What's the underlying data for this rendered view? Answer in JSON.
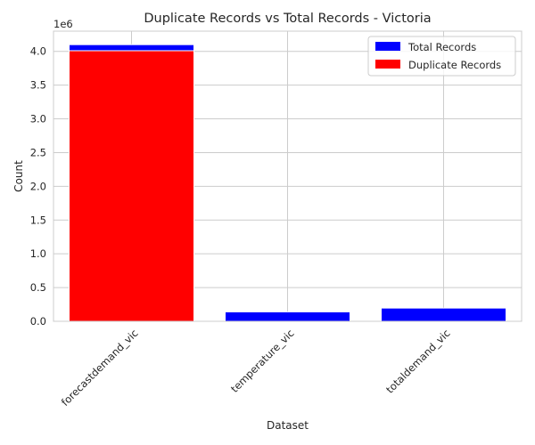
{
  "chart_data": {
    "type": "bar",
    "title": "Duplicate Records vs Total Records - Victoria",
    "xlabel": "Dataset",
    "ylabel": "Count",
    "y_offset_text": "1e6",
    "categories": [
      "forecastdemand_vic",
      "temperature_vic",
      "totaldemand_vic"
    ],
    "series": [
      {
        "name": "Total Records",
        "color": "#0000ff",
        "values": [
          4100000,
          140000,
          196000
        ]
      },
      {
        "name": "Duplicate Records",
        "color": "#ff0000",
        "values": [
          4010000,
          0,
          0
        ]
      }
    ],
    "ylim": [
      0,
      4300000
    ],
    "yticks": [
      0,
      500000,
      1000000,
      1500000,
      2000000,
      2500000,
      3000000,
      3500000,
      4000000
    ],
    "ytick_labels": [
      "0.0",
      "0.5",
      "1.0",
      "1.5",
      "2.0",
      "2.5",
      "3.0",
      "3.5",
      "4.0"
    ],
    "xtick_rotation_deg": 45,
    "grid": true,
    "legend_position": "top-right"
  }
}
